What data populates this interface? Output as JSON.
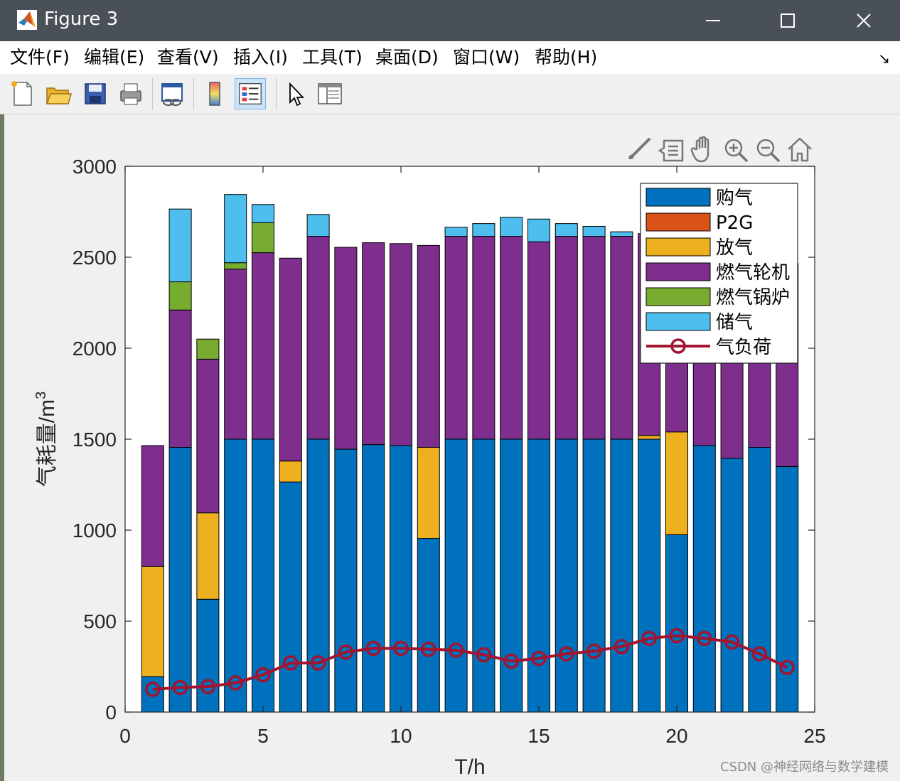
{
  "window": {
    "title": "Figure 3"
  },
  "menu": [
    "文件(F)",
    "编辑(E)",
    "查看(V)",
    "插入(I)",
    "工具(T)",
    "桌面(D)",
    "窗口(W)",
    "帮助(H)"
  ],
  "toolbar": {
    "icons": [
      "new-figure-icon",
      "open-file-icon",
      "save-icon",
      "print-icon",
      "link-plot-icon",
      "colorbar-icon",
      "legend-icon",
      "edit-plot-icon",
      "property-inspector-icon"
    ],
    "active": "legend-icon"
  },
  "axes_toolbar": [
    "brush-icon",
    "data-tips-icon",
    "pan-icon",
    "zoom-in-icon",
    "zoom-out-icon",
    "home-icon"
  ],
  "watermark": "CSDN @神经网络与数学建模",
  "chart_data": {
    "type": "bar",
    "stacked": true,
    "xlabel": "T/h",
    "ylabel": "气耗量/m",
    "ylabel_sup": "3",
    "xlim": [
      0,
      25
    ],
    "ylim": [
      0,
      3000
    ],
    "xticks": [
      0,
      5,
      10,
      15,
      20,
      25
    ],
    "yticks": [
      0,
      500,
      1000,
      1500,
      2000,
      2500,
      3000
    ],
    "grid": false,
    "legend_position": "top-right",
    "x": [
      1,
      2,
      3,
      4,
      5,
      6,
      7,
      8,
      9,
      10,
      11,
      12,
      13,
      14,
      15,
      16,
      17,
      18,
      19,
      20,
      21,
      22,
      23,
      24
    ],
    "series": [
      {
        "name": "购气",
        "color": "#0072BD",
        "values": [
          195,
          1455,
          620,
          1500,
          1500,
          1265,
          1500,
          1445,
          1470,
          1465,
          955,
          1500,
          1500,
          1500,
          1500,
          1500,
          1500,
          1500,
          1500,
          975,
          1465,
          1395,
          1455,
          1350
        ]
      },
      {
        "name": "P2G",
        "color": "#D95319",
        "values": [
          0,
          0,
          0,
          0,
          0,
          0,
          0,
          0,
          0,
          0,
          0,
          0,
          0,
          0,
          0,
          0,
          0,
          0,
          0,
          0,
          0,
          0,
          0,
          0
        ]
      },
      {
        "name": "放气",
        "color": "#EDB120",
        "values": [
          605,
          0,
          475,
          0,
          0,
          115,
          0,
          0,
          0,
          0,
          500,
          0,
          0,
          0,
          0,
          0,
          0,
          0,
          20,
          565,
          0,
          0,
          0,
          0
        ]
      },
      {
        "name": "燃气轮机",
        "color": "#7E2F8E",
        "values": [
          665,
          755,
          845,
          935,
          1025,
          1115,
          1115,
          1110,
          1110,
          1110,
          1110,
          1115,
          1115,
          1115,
          1085,
          1115,
          1115,
          1115,
          1110,
          1115,
          1115,
          1115,
          1115,
          1115
        ]
      },
      {
        "name": "燃气锅炉",
        "color": "#77AC30",
        "values": [
          0,
          155,
          110,
          35,
          165,
          0,
          0,
          0,
          0,
          0,
          0,
          0,
          0,
          0,
          0,
          0,
          0,
          0,
          0,
          0,
          0,
          0,
          0,
          0
        ]
      },
      {
        "name": "储气",
        "color": "#4DBEEE",
        "values": [
          0,
          400,
          0,
          375,
          100,
          0,
          120,
          0,
          0,
          0,
          0,
          50,
          70,
          105,
          125,
          70,
          55,
          25,
          0,
          0,
          0,
          0,
          0,
          0
        ]
      }
    ],
    "line": {
      "name": "气负荷",
      "color": "#A2142F",
      "values": [
        125,
        135,
        140,
        160,
        205,
        270,
        270,
        330,
        350,
        350,
        345,
        340,
        315,
        280,
        295,
        320,
        335,
        360,
        405,
        420,
        405,
        385,
        320,
        245
      ]
    }
  }
}
